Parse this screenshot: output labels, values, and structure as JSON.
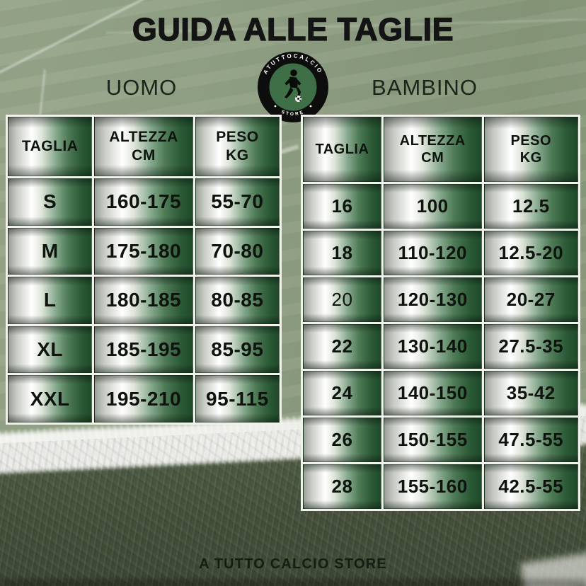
{
  "poster": {
    "title": "GUIDA ALLE TAGLIE",
    "footer": "A TUTTO CALCIO STORE"
  },
  "logo": {
    "arc_text": "ATUTTOCALCIO",
    "store_text": "STORE"
  },
  "tables": {
    "uomo": {
      "label": "UOMO",
      "columns": [
        {
          "title": "TAGLIA",
          "sub": ""
        },
        {
          "title": "ALTEZZA",
          "sub": "CM"
        },
        {
          "title": "PESO",
          "sub": "KG"
        }
      ],
      "rows": [
        {
          "taglia": "S",
          "altezza": "160-175",
          "peso": "55-70"
        },
        {
          "taglia": "M",
          "altezza": "175-180",
          "peso": "70-80"
        },
        {
          "taglia": "L",
          "altezza": "180-185",
          "peso": "80-85"
        },
        {
          "taglia": "XL",
          "altezza": "185-195",
          "peso": "85-95"
        },
        {
          "taglia": "XXL",
          "altezza": "195-210",
          "peso": "95-115"
        }
      ]
    },
    "bambino": {
      "label": "BAMBINO",
      "columns": [
        {
          "title": "TAGLIA",
          "sub": ""
        },
        {
          "title": "ALTEZZA",
          "sub": "CM"
        },
        {
          "title": "PESO",
          "sub": "KG"
        }
      ],
      "rows": [
        {
          "taglia": "16",
          "altezza": "100",
          "peso": "12.5"
        },
        {
          "taglia": "18",
          "altezza": "110-120",
          "peso": "12.5-20"
        },
        {
          "taglia": "20",
          "altezza": "120-130",
          "peso": "20-27",
          "light": true
        },
        {
          "taglia": "22",
          "altezza": "130-140",
          "peso": "27.5-35"
        },
        {
          "taglia": "24",
          "altezza": "140-150",
          "peso": "35-42"
        },
        {
          "taglia": "26",
          "altezza": "150-155",
          "peso": "47.5-55"
        },
        {
          "taglia": "28",
          "altezza": "155-160",
          "peso": "42.5-55"
        }
      ]
    }
  },
  "colors": {
    "cell_gradient_dark_green": "#1f4a2a",
    "cell_gradient_mid_green": "#4e7a56",
    "cell_gradient_white": "#ffffff",
    "cell_gradient_silver": "#9aa098",
    "table_border_white": "#f3f1ec",
    "pitch_light_green": "#90a084",
    "pitch_dark_green": "#47543e",
    "painted_line_white": "#f2f2ef",
    "logo_ring_black": "#0d0d0d",
    "logo_inner_green": "#3e6f47",
    "text_dark": "#141414"
  }
}
